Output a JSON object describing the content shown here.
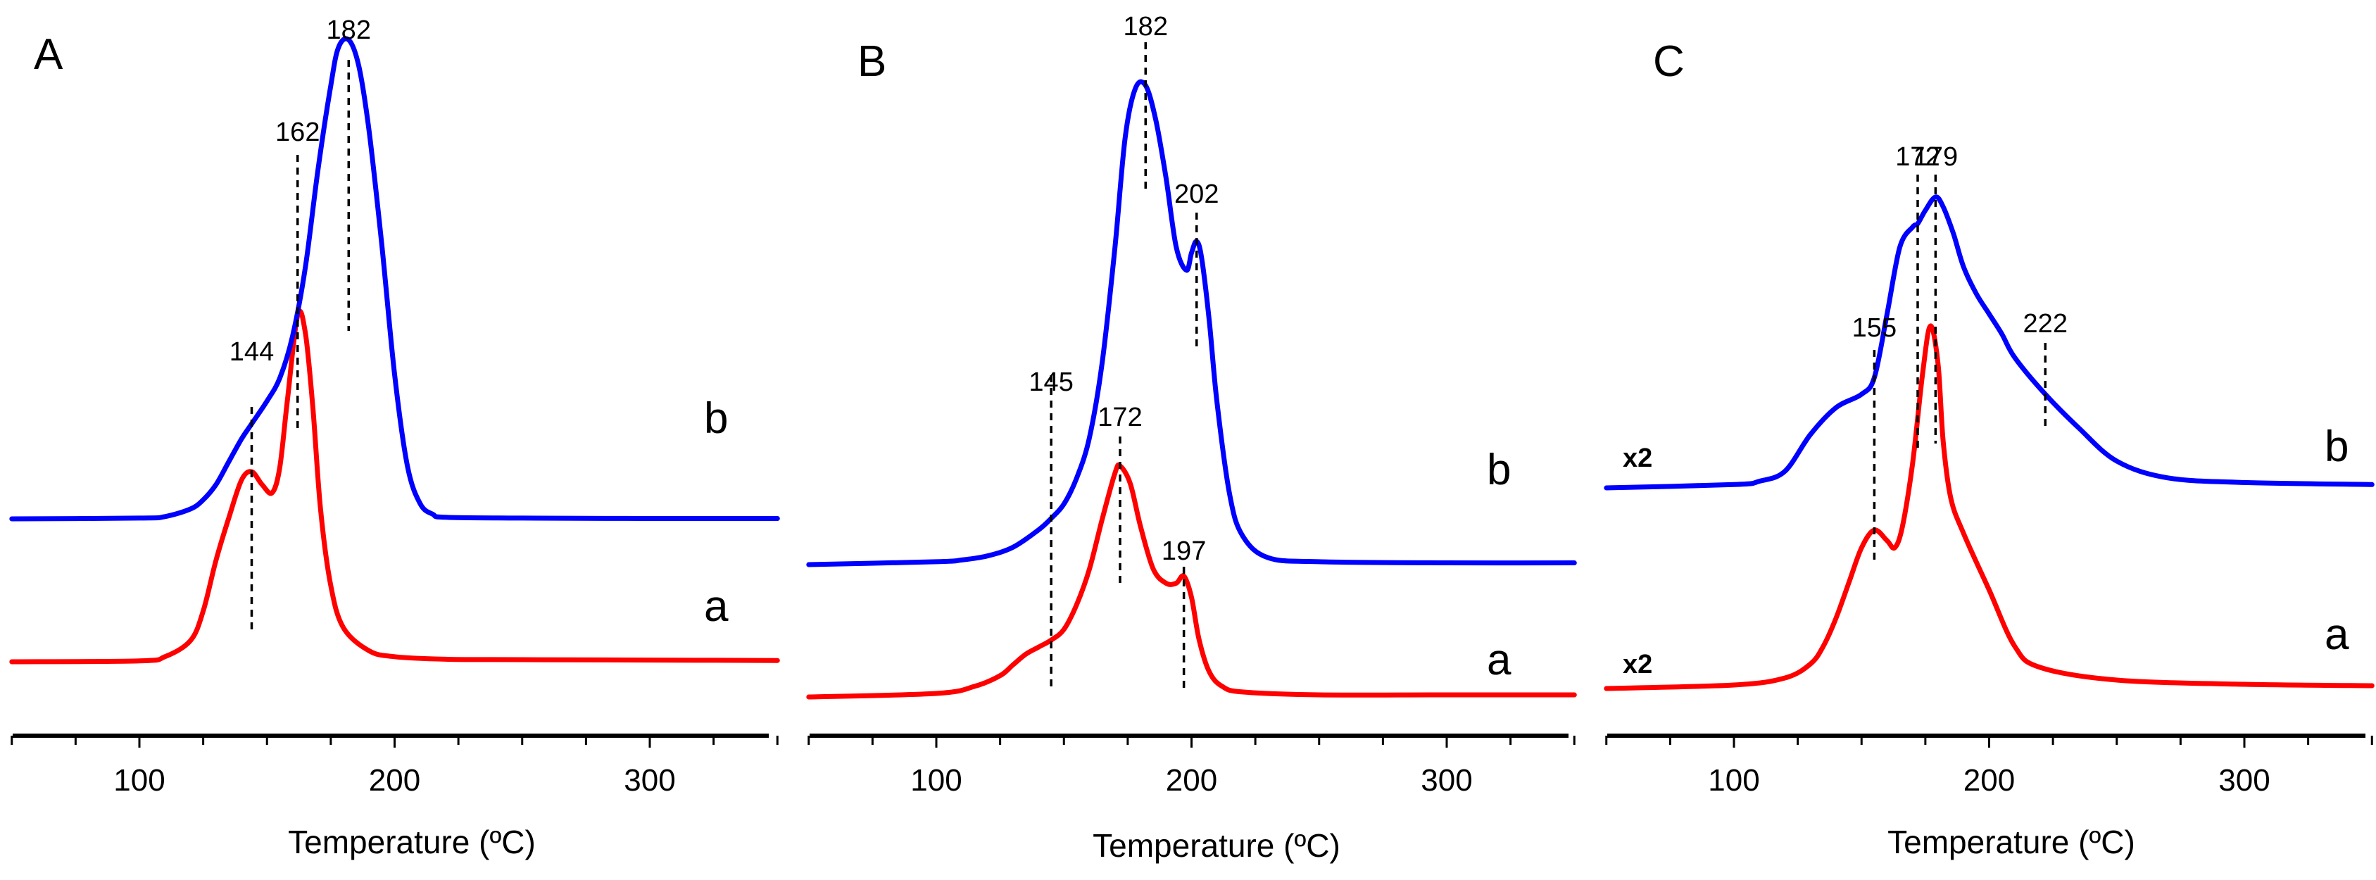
{
  "chart_data": [
    {
      "type": "line",
      "panel": "A",
      "xlabel": "Temperature (ºC)",
      "xlim": [
        50,
        350
      ],
      "xticks": [
        100,
        200,
        300
      ],
      "series": [
        {
          "name": "a",
          "label": "a",
          "color": "#ff0000",
          "x": [
            50,
            100,
            110,
            120,
            125,
            130,
            135,
            140,
            144,
            148,
            152,
            155,
            158,
            162,
            165,
            168,
            171,
            175,
            180,
            190,
            200,
            220,
            250,
            300,
            350
          ],
          "y": [
            0,
            0.1,
            0.6,
            2.5,
            6,
            12,
            17,
            21.5,
            22.5,
            21,
            20,
            23,
            31,
            41,
            39,
            30,
            18,
            9,
            4,
            1.3,
            0.6,
            0.3,
            0.25,
            0.2,
            0.15
          ]
        },
        {
          "name": "b",
          "label": "b",
          "color": "#0000ff",
          "x": [
            50,
            100,
            110,
            120,
            125,
            130,
            135,
            140,
            144,
            150,
            155,
            160,
            165,
            170,
            175,
            178,
            182,
            186,
            190,
            195,
            200,
            205,
            210,
            215,
            220,
            250,
            300,
            350
          ],
          "y": [
            0,
            0.1,
            0.3,
            1.3,
            2.5,
            4.5,
            7.5,
            10.5,
            12.5,
            15.5,
            18.5,
            24,
            33,
            46,
            57,
            62,
            63,
            59.5,
            51,
            36,
            19,
            7,
            2,
            0.6,
            0.2,
            0.1,
            0.05,
            0.05
          ]
        }
      ],
      "annotations": [
        {
          "x": 144,
          "label": "144"
        },
        {
          "x": 162,
          "label": "162"
        },
        {
          "x": 182,
          "label": "182"
        }
      ]
    },
    {
      "type": "line",
      "panel": "B",
      "xlabel": "Temperature (ºC)",
      "xlim": [
        50,
        350
      ],
      "xticks": [
        100,
        200,
        300
      ],
      "series": [
        {
          "name": "a",
          "label": "a",
          "color": "#ff0000",
          "x": [
            50,
            100,
            115,
            125,
            130,
            135,
            140,
            145,
            150,
            155,
            160,
            165,
            170,
            172,
            176,
            180,
            185,
            190,
            194,
            197,
            200,
            203,
            207,
            212,
            220,
            250,
            300,
            350
          ],
          "y": [
            0,
            0.5,
            1.5,
            3,
            4.5,
            6,
            7,
            8,
            9.5,
            13,
            18,
            25,
            31.5,
            32.5,
            30,
            24,
            18,
            16,
            16,
            17,
            14,
            8,
            3.5,
            1.5,
            0.7,
            0.3,
            0.3,
            0.3
          ]
        },
        {
          "name": "b",
          "label": "b",
          "color": "#0000ff",
          "x": [
            50,
            100,
            110,
            120,
            130,
            140,
            145,
            150,
            155,
            160,
            165,
            170,
            174,
            178,
            182,
            186,
            190,
            194,
            198,
            200,
            202,
            204,
            207,
            210,
            215,
            220,
            230,
            250,
            300,
            350
          ],
          "y": [
            0,
            0.5,
            0.8,
            1.5,
            3,
            6,
            8,
            10.5,
            15,
            22,
            35,
            55,
            74,
            82.5,
            83,
            77,
            67,
            55,
            51,
            54,
            56,
            53,
            42,
            28,
            12,
            5,
            1.2,
            0.5,
            0.3,
            0.3
          ]
        }
      ],
      "annotations": [
        {
          "x": 145,
          "label": "145"
        },
        {
          "x": 172,
          "label": "172"
        },
        {
          "x": 182,
          "label": "182"
        },
        {
          "x": 197,
          "label": "197"
        },
        {
          "x": 202,
          "label": "202"
        }
      ]
    },
    {
      "type": "line",
      "panel": "C",
      "xlabel": "Temperature (ºC)",
      "xlim": [
        50,
        350
      ],
      "xticks": [
        100,
        200,
        300
      ],
      "multipliers": [
        "x2",
        "x2"
      ],
      "series": [
        {
          "name": "a",
          "label": "a",
          "color": "#ff0000",
          "x": [
            50,
            100,
            120,
            130,
            135,
            140,
            145,
            150,
            155,
            160,
            163,
            166,
            170,
            174,
            177,
            180,
            182,
            185,
            190,
            200,
            210,
            220,
            250,
            300,
            350
          ],
          "y": [
            0,
            0.5,
            1.5,
            3.5,
            6,
            10,
            15,
            20,
            22.5,
            21,
            20,
            23,
            32,
            45,
            51.5,
            46,
            35,
            27,
            22,
            14,
            6,
            3,
            1.2,
            0.6,
            0.4
          ]
        },
        {
          "name": "b",
          "label": "b",
          "color": "#0000ff",
          "x": [
            50,
            100,
            110,
            120,
            130,
            140,
            150,
            155,
            160,
            165,
            170,
            172,
            175,
            179,
            182,
            186,
            190,
            195,
            200,
            205,
            210,
            222,
            235,
            250,
            270,
            300,
            350
          ],
          "y": [
            0,
            0.5,
            1,
            2.5,
            8,
            12,
            14,
            16.5,
            26,
            36,
            39,
            39.5,
            41.5,
            43.5,
            42,
            38,
            33,
            29,
            26,
            23,
            19.5,
            14,
            9,
            4,
            1.5,
            0.8,
            0.5
          ]
        }
      ],
      "annotations": [
        {
          "x": 155,
          "label": "155"
        },
        {
          "x": 172,
          "label": "172"
        },
        {
          "x": 179,
          "label": "179"
        },
        {
          "x": 222,
          "label": "222"
        }
      ]
    }
  ]
}
